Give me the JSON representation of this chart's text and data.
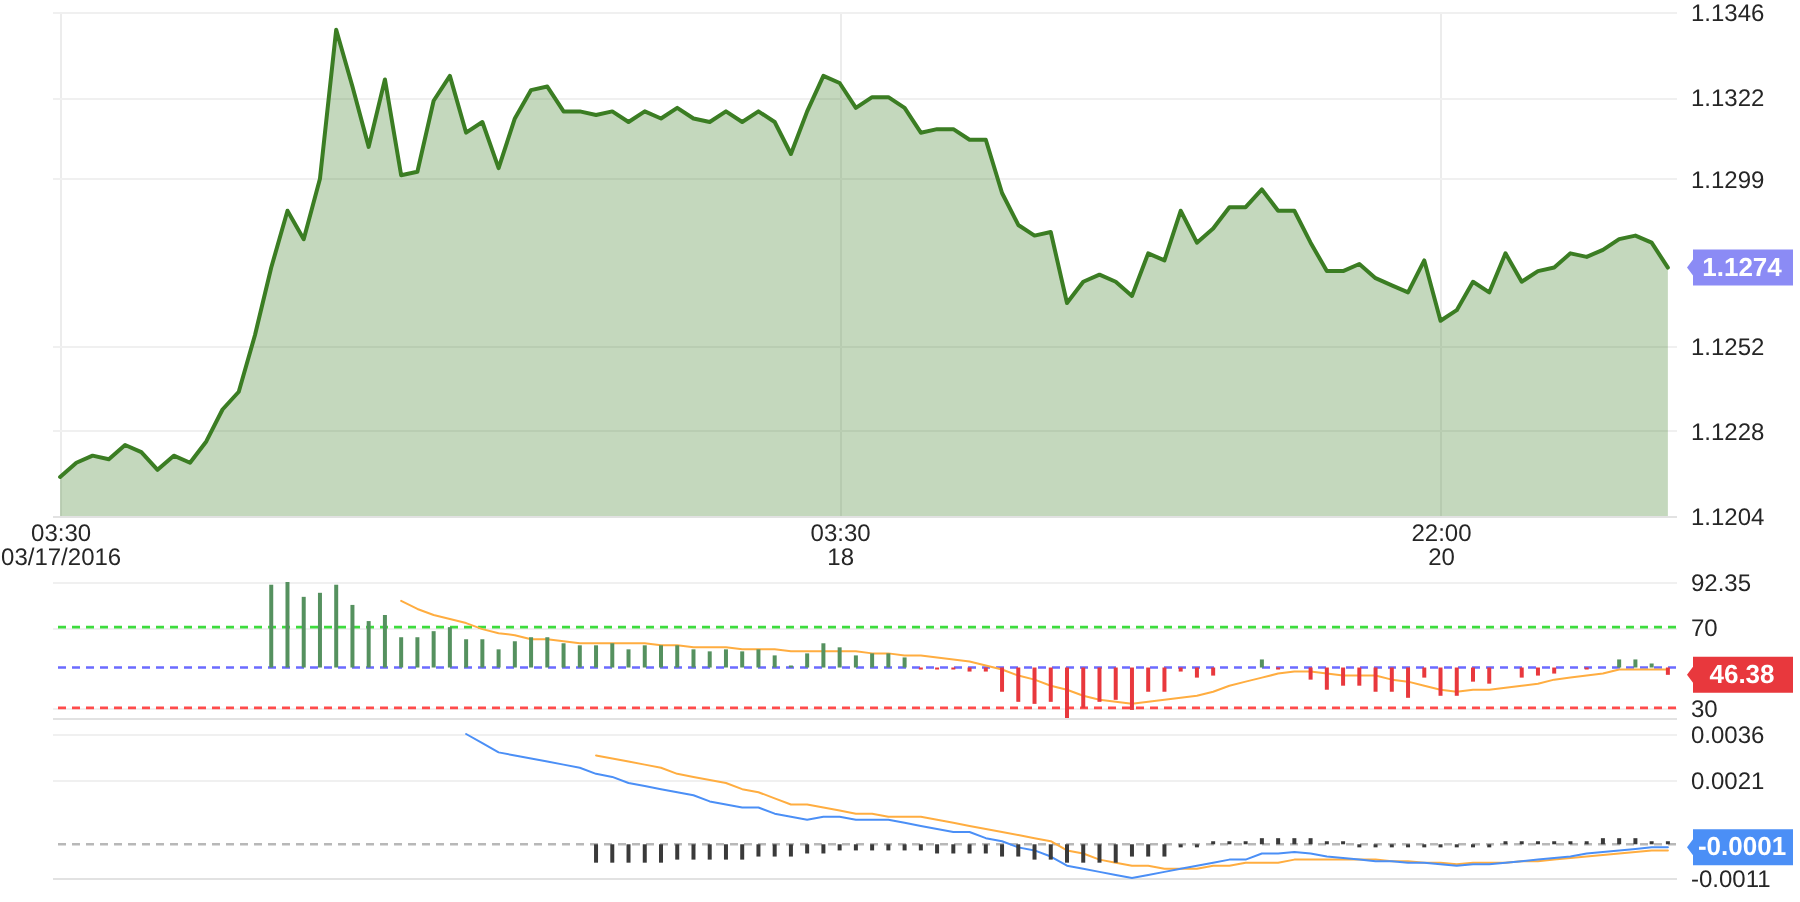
{
  "chart_data": [
    {
      "type": "area",
      "categories": [
        "03:30\n03/17/2016",
        null,
        null,
        null,
        null,
        null,
        null,
        null,
        null,
        null,
        null,
        null,
        null,
        null,
        null,
        null,
        null,
        null,
        null,
        null,
        null,
        null,
        null,
        null,
        null,
        null,
        null,
        null,
        null,
        null,
        null,
        null,
        null,
        null,
        null,
        null,
        null,
        null,
        null,
        null,
        null,
        null,
        null,
        null,
        null,
        null,
        null,
        null,
        "03:30\n18",
        null,
        null,
        null,
        null,
        null,
        null,
        null,
        null,
        null,
        null,
        null,
        null,
        null,
        null,
        null,
        null,
        null,
        null,
        null,
        null,
        null,
        null,
        null,
        null,
        null,
        null,
        null,
        null,
        null,
        null,
        null,
        null,
        null,
        null,
        null,
        null,
        "22:00\n20",
        null,
        null,
        null,
        null,
        null,
        null,
        null,
        null,
        null,
        null,
        null,
        null,
        null,
        null
      ],
      "series": [
        {
          "color": "#3b7d23",
          "values": [
            1.1215,
            1.1219,
            1.1221,
            1.122,
            1.1224,
            1.1222,
            1.1217,
            1.1221,
            1.1219,
            1.1225,
            1.1234,
            1.1239,
            1.1255,
            1.1274,
            1.129,
            1.1282,
            1.1299,
            1.1341,
            1.1325,
            1.1308,
            1.1327,
            1.13,
            1.1301,
            1.1321,
            1.1328,
            1.1312,
            1.1315,
            1.1302,
            1.1316,
            1.1324,
            1.1325,
            1.1318,
            1.1318,
            1.1317,
            1.1318,
            1.1315,
            1.1318,
            1.1316,
            1.1319,
            1.1316,
            1.1315,
            1.1318,
            1.1315,
            1.1318,
            1.1315,
            1.1306,
            1.1318,
            1.1328,
            1.1326,
            1.1319,
            1.1322,
            1.1322,
            1.1319,
            1.1312,
            1.1313,
            1.1313,
            1.131,
            1.131,
            1.1295,
            1.1286,
            1.1283,
            1.1284,
            1.1264,
            1.127,
            1.1272,
            1.127,
            1.1266,
            1.1278,
            1.1276,
            1.129,
            1.1281,
            1.1285,
            1.1291,
            1.1291,
            1.1296,
            1.129,
            1.129,
            1.1281,
            1.1273,
            1.1273,
            1.1275,
            1.1271,
            1.1269,
            1.1267,
            1.1276,
            1.1259,
            1.1262,
            1.127,
            1.1267,
            1.1278,
            1.127,
            1.1273,
            1.1274,
            1.1278,
            1.1277,
            1.1279,
            1.1282,
            1.1283,
            1.1281,
            1.1274
          ],
          "value_labels": [
            null,
            null,
            null,
            null,
            null,
            null,
            null,
            null,
            null,
            null,
            null,
            null,
            null,
            null,
            null,
            null,
            null,
            null,
            null,
            null,
            null,
            null,
            null,
            null,
            null,
            null,
            null,
            null,
            null,
            null,
            null,
            null,
            null,
            null,
            null,
            null,
            null,
            null,
            null,
            null,
            null,
            null,
            null,
            null,
            null,
            null,
            null,
            null,
            null,
            null,
            null,
            null,
            null,
            null,
            null,
            null,
            null,
            null,
            null,
            null,
            null,
            null,
            null,
            null,
            null,
            null,
            null,
            null,
            null,
            null,
            null,
            null,
            null,
            null,
            null,
            null,
            null,
            null,
            null,
            null,
            null,
            null,
            null,
            null,
            null,
            null,
            null,
            null,
            null,
            null,
            null,
            null,
            null,
            null,
            null,
            null,
            null,
            null,
            null,
            "1.1274"
          ]
        }
      ],
      "ylim": [
        1.1204,
        1.1346
      ],
      "yticks": [
        1.1204,
        1.1228,
        1.1252,
        1.1299,
        1.1322,
        1.1346
      ],
      "grid": true
    },
    {
      "type": "bar",
      "tick_labels": "y",
      "categories": [
        null,
        null,
        null,
        null,
        null,
        null,
        null,
        null,
        null,
        null,
        null,
        null,
        null,
        null,
        null,
        null,
        null,
        null,
        null,
        null,
        null,
        null,
        null,
        null,
        null,
        null,
        null,
        null,
        null,
        null,
        null,
        null,
        null,
        null,
        null,
        null,
        null,
        null,
        null,
        null,
        null,
        null,
        null,
        null,
        null,
        null,
        null,
        null,
        null,
        null,
        null,
        null,
        null,
        null,
        null,
        null,
        null,
        null,
        null,
        null,
        null,
        null,
        null,
        null,
        null,
        null,
        null,
        null,
        null,
        null,
        null,
        null,
        null,
        null,
        null,
        null,
        null,
        null,
        null,
        null,
        null,
        null,
        null,
        null,
        null,
        null,
        null,
        null,
        null,
        null,
        null,
        null,
        null,
        null,
        null,
        null,
        null,
        null,
        null,
        null
      ],
      "series": [
        {
          "values": [
            null,
            null,
            null,
            null,
            null,
            null,
            null,
            null,
            null,
            null,
            null,
            null,
            null,
            41,
            42.35,
            35,
            37,
            41,
            31,
            23,
            26,
            15,
            15,
            18,
            20,
            14,
            14,
            9,
            13,
            15,
            15,
            12,
            11,
            11,
            12,
            9,
            11,
            11,
            11,
            9,
            8,
            9,
            8,
            9,
            6,
            1,
            7,
            12,
            10,
            6,
            7,
            7,
            5,
            -1,
            -1,
            -1,
            -2,
            -2,
            -12,
            -17,
            -18,
            -17,
            -25,
            -20,
            -17,
            -16,
            -21,
            -12,
            -12,
            -2,
            -5,
            -4,
            null,
            null,
            4,
            -1,
            null,
            -6,
            -11,
            -9,
            -9,
            -12,
            -12,
            -15,
            -5,
            -14,
            -14,
            -7,
            -8,
            null,
            -5,
            -4,
            -3,
            null,
            -1,
            null,
            4,
            4,
            2,
            -3.62
          ],
          "base": [
            null,
            null,
            null,
            null,
            null,
            null,
            null,
            null,
            null,
            null,
            null,
            null,
            null,
            50,
            50,
            50,
            50,
            50,
            50,
            50,
            50,
            50,
            50,
            50,
            50,
            50,
            50,
            50,
            50,
            50,
            50,
            50,
            50,
            50,
            50,
            50,
            50,
            50,
            50,
            50,
            50,
            50,
            50,
            50,
            50,
            50,
            50,
            50,
            50,
            50,
            50,
            50,
            50,
            50,
            50,
            50,
            50,
            50,
            50,
            50,
            50,
            50,
            50,
            50,
            50,
            50,
            50,
            50,
            50,
            50,
            50,
            50,
            null,
            null,
            50,
            50,
            null,
            50,
            50,
            50,
            50,
            50,
            50,
            50,
            50,
            50,
            50,
            50,
            50,
            null,
            50,
            50,
            50,
            null,
            50,
            null,
            50,
            50,
            50,
            50
          ],
          "colors": [
            null,
            null,
            null,
            null,
            null,
            null,
            null,
            null,
            null,
            null,
            null,
            null,
            null,
            "#55915f",
            "#55915f",
            "#55915f",
            "#55915f",
            "#55915f",
            "#55915f",
            "#55915f",
            "#55915f",
            "#55915f",
            "#55915f",
            "#55915f",
            "#55915f",
            "#55915f",
            "#55915f",
            "#55915f",
            "#55915f",
            "#55915f",
            "#55915f",
            "#55915f",
            "#55915f",
            "#55915f",
            "#55915f",
            "#55915f",
            "#55915f",
            "#55915f",
            "#55915f",
            "#55915f",
            "#55915f",
            "#55915f",
            "#55915f",
            "#55915f",
            "#55915f",
            "#55915f",
            "#55915f",
            "#55915f",
            "#55915f",
            "#55915f",
            "#55915f",
            "#55915f",
            "#55915f",
            "#e8383d",
            "#e8383d",
            "#e8383d",
            "#e8383d",
            "#e8383d",
            "#e8383d",
            "#e8383d",
            "#e8383d",
            "#e8383d",
            "#e8383d",
            "#e8383d",
            "#e8383d",
            "#e8383d",
            "#e8383d",
            "#e8383d",
            "#e8383d",
            "#e8383d",
            "#e8383d",
            "#e8383d",
            null,
            null,
            "#55915f",
            "#e8383d",
            null,
            "#e8383d",
            "#e8383d",
            "#e8383d",
            "#e8383d",
            "#e8383d",
            "#e8383d",
            "#e8383d",
            "#e8383d",
            "#e8383d",
            "#e8383d",
            "#e8383d",
            "#e8383d",
            null,
            "#e8383d",
            "#e8383d",
            "#e8383d",
            null,
            "#e8383d",
            null,
            "#55915f",
            "#55915f",
            "#55915f",
            "#e8383d"
          ]
        },
        {
          "type": "line",
          "color": "#ffad40",
          "values": [
            null,
            null,
            null,
            null,
            null,
            null,
            null,
            null,
            null,
            null,
            null,
            null,
            null,
            null,
            null,
            null,
            null,
            null,
            null,
            null,
            null,
            83,
            79,
            76,
            74,
            72,
            69,
            67,
            66,
            64,
            64,
            63,
            62,
            62,
            62,
            62,
            62,
            61,
            61,
            60,
            60,
            60,
            59,
            59,
            59,
            58,
            58,
            58,
            58,
            58,
            57,
            57,
            56,
            56,
            55,
            54,
            53,
            51,
            49,
            46,
            44,
            41,
            39,
            36,
            34,
            33,
            32,
            33,
            34,
            35,
            36,
            38,
            41,
            43,
            45,
            47,
            48,
            48,
            47,
            46,
            46,
            46,
            44,
            43,
            41,
            39,
            38,
            39,
            39,
            40,
            41,
            42,
            44,
            45,
            46,
            47,
            49,
            49,
            49,
            49
          ]
        }
      ],
      "ylim": [
        25,
        92.35
      ],
      "yticks": [
        30,
        70,
        92.35
      ],
      "grid": "y",
      "ref_lines": [
        {
          "axis": "y",
          "value": 70,
          "color": "#3ddc3d",
          "line_style": "dashed"
        },
        {
          "axis": "y",
          "value": 50,
          "color": "#6b6bff",
          "line_style": "dashed"
        },
        {
          "axis": "y",
          "value": 30,
          "color": "#ff4b4b",
          "line_style": "dashed"
        }
      ],
      "annotations": [
        "46.38"
      ]
    },
    {
      "type": "line",
      "tick_labels": "y",
      "categories": [
        null,
        null,
        null,
        null,
        null,
        null,
        null,
        null,
        null,
        null,
        null,
        null,
        null,
        null,
        null,
        null,
        null,
        null,
        null,
        null,
        null,
        null,
        null,
        null,
        null,
        null,
        null,
        null,
        null,
        null,
        null,
        null,
        null,
        null,
        null,
        null,
        null,
        null,
        null,
        null,
        null,
        null,
        null,
        null,
        null,
        null,
        null,
        null,
        null,
        null,
        null,
        null,
        null,
        null,
        null,
        null,
        null,
        null,
        null,
        null,
        null,
        null,
        null,
        null,
        null,
        null,
        null,
        null,
        null,
        null,
        null,
        null,
        null,
        null,
        null,
        null,
        null,
        null,
        null,
        null,
        null,
        null,
        null,
        null,
        null,
        null,
        null,
        null,
        null,
        null,
        null,
        null,
        null,
        null,
        null,
        null,
        null,
        null,
        null,
        null
      ],
      "series": [
        {
          "type": "bar",
          "color": "#3a3a3a",
          "values": [
            null,
            null,
            null,
            null,
            null,
            null,
            null,
            null,
            null,
            null,
            null,
            null,
            null,
            null,
            null,
            null,
            null,
            null,
            null,
            null,
            null,
            null,
            null,
            null,
            null,
            null,
            null,
            null,
            null,
            null,
            null,
            null,
            null,
            -0.0006,
            -0.0006,
            -0.0006,
            -0.0006,
            -0.0006,
            -0.0005,
            -0.0005,
            -0.0005,
            -0.0005,
            -0.0005,
            -0.0004,
            -0.0004,
            -0.0004,
            -0.0003,
            -0.0003,
            -0.0002,
            -0.0002,
            -0.0002,
            -0.0002,
            -0.0002,
            -0.0002,
            -0.0003,
            -0.0003,
            -0.0003,
            -0.0003,
            -0.0004,
            -0.0004,
            -0.0005,
            -0.0005,
            -0.0006,
            -0.0006,
            -0.0006,
            -0.0006,
            -0.0004,
            -0.0004,
            -0.0004,
            -0.0001,
            -0.0001,
            0.0001,
            0.0001,
            0.0001,
            0.0002,
            0.0002,
            0.0002,
            0.0002,
            0.0001,
            0.0001,
            -0.0001,
            -0.0001,
            -0.0001,
            -0.0001,
            -0.0001,
            -0.0001,
            -0.0001,
            -0.0001,
            -0.0001,
            0.0001,
            0.0001,
            0.0001,
            0.0001,
            0.0001,
            0.0001,
            0.0002,
            0.0002,
            0.0002,
            0.0001,
            0.0001
          ]
        },
        {
          "color": "#ffad40",
          "values": [
            null,
            null,
            null,
            null,
            null,
            null,
            null,
            null,
            null,
            null,
            null,
            null,
            null,
            null,
            null,
            null,
            null,
            null,
            null,
            null,
            null,
            null,
            null,
            null,
            null,
            null,
            null,
            null,
            null,
            null,
            null,
            null,
            null,
            0.0029,
            0.0028,
            0.0027,
            0.0026,
            0.0025,
            0.0023,
            0.0022,
            0.0021,
            0.002,
            0.0018,
            0.0017,
            0.0015,
            0.0013,
            0.0013,
            0.0012,
            0.0011,
            0.001,
            0.001,
            0.0009,
            0.0009,
            0.0009,
            0.0008,
            0.0007,
            0.0006,
            0.0005,
            0.0004,
            0.0003,
            0.0002,
            0.0001,
            -0.0002,
            -0.0003,
            -0.0005,
            -0.0006,
            -0.0007,
            -0.0007,
            -0.0008,
            -0.0008,
            -0.0008,
            -0.0007,
            -0.0007,
            -0.0006,
            -0.0006,
            -0.0006,
            -0.0005,
            -0.0005,
            -0.0005,
            -0.0005,
            -0.0005,
            -0.0005,
            -0.00055,
            -0.00055,
            -0.0006,
            -0.0006,
            -0.00065,
            -0.0006,
            -0.0006,
            -0.0006,
            -0.00055,
            -0.00055,
            -0.0005,
            -0.00045,
            -0.0004,
            -0.00035,
            -0.0003,
            -0.00025,
            -0.0002,
            -0.0002
          ]
        },
        {
          "color": "#4b8ff6",
          "values": [
            null,
            null,
            null,
            null,
            null,
            null,
            null,
            null,
            null,
            null,
            null,
            null,
            null,
            null,
            null,
            null,
            null,
            null,
            null,
            null,
            null,
            null,
            null,
            null,
            null,
            0.0036,
            0.0033,
            0.003,
            0.0029,
            0.0028,
            0.0027,
            0.0026,
            0.0025,
            0.0023,
            0.0022,
            0.002,
            0.0019,
            0.0018,
            0.0017,
            0.0016,
            0.0014,
            0.0013,
            0.0012,
            0.0012,
            0.001,
            0.0009,
            0.0008,
            0.0009,
            0.0009,
            0.0008,
            0.0008,
            0.0008,
            0.0007,
            0.0006,
            0.0005,
            0.0004,
            0.0004,
            0.0002,
            0.0001,
            -0.0001,
            -0.0002,
            -0.0004,
            -0.0007,
            -0.0008,
            -0.0009,
            -0.001,
            -0.0011,
            -0.001,
            -0.0009,
            -0.0008,
            -0.0007,
            -0.0006,
            -0.0005,
            -0.0005,
            -0.0003,
            -0.0003,
            -0.00025,
            -0.0003,
            -0.0004,
            -0.00045,
            -0.0005,
            -0.00055,
            -0.00055,
            -0.0006,
            -0.0006,
            -0.00065,
            -0.0007,
            -0.00065,
            -0.00065,
            -0.0006,
            -0.00055,
            -0.0005,
            -0.00045,
            -0.0004,
            -0.0003,
            -0.00025,
            -0.0002,
            -0.00015,
            -0.0001,
            -0.0001
          ],
          "value_labels": [
            null,
            null,
            null,
            null,
            null,
            null,
            null,
            null,
            null,
            null,
            null,
            null,
            null,
            null,
            null,
            null,
            null,
            null,
            null,
            null,
            null,
            null,
            null,
            null,
            null,
            null,
            null,
            null,
            null,
            null,
            null,
            null,
            null,
            null,
            null,
            null,
            null,
            null,
            null,
            null,
            null,
            null,
            null,
            null,
            null,
            null,
            null,
            null,
            null,
            null,
            null,
            null,
            null,
            null,
            null,
            null,
            null,
            null,
            null,
            null,
            null,
            null,
            null,
            null,
            null,
            null,
            null,
            null,
            null,
            null,
            null,
            null,
            null,
            null,
            null,
            null,
            null,
            null,
            null,
            null,
            null,
            null,
            null,
            null,
            null,
            null,
            null,
            null,
            null,
            null,
            null,
            null,
            null,
            null,
            null,
            null,
            null,
            null,
            null,
            "-0.0001"
          ]
        }
      ],
      "ylim": [
        -0.0011,
        0.0036
      ],
      "yticks": [
        -0.0011,
        0.0021,
        0.0036
      ],
      "grid": "y",
      "ref_lines": [
        {
          "axis": "y",
          "value": 0,
          "color": "#b8b8b8",
          "line_style": "dashed"
        }
      ]
    }
  ]
}
